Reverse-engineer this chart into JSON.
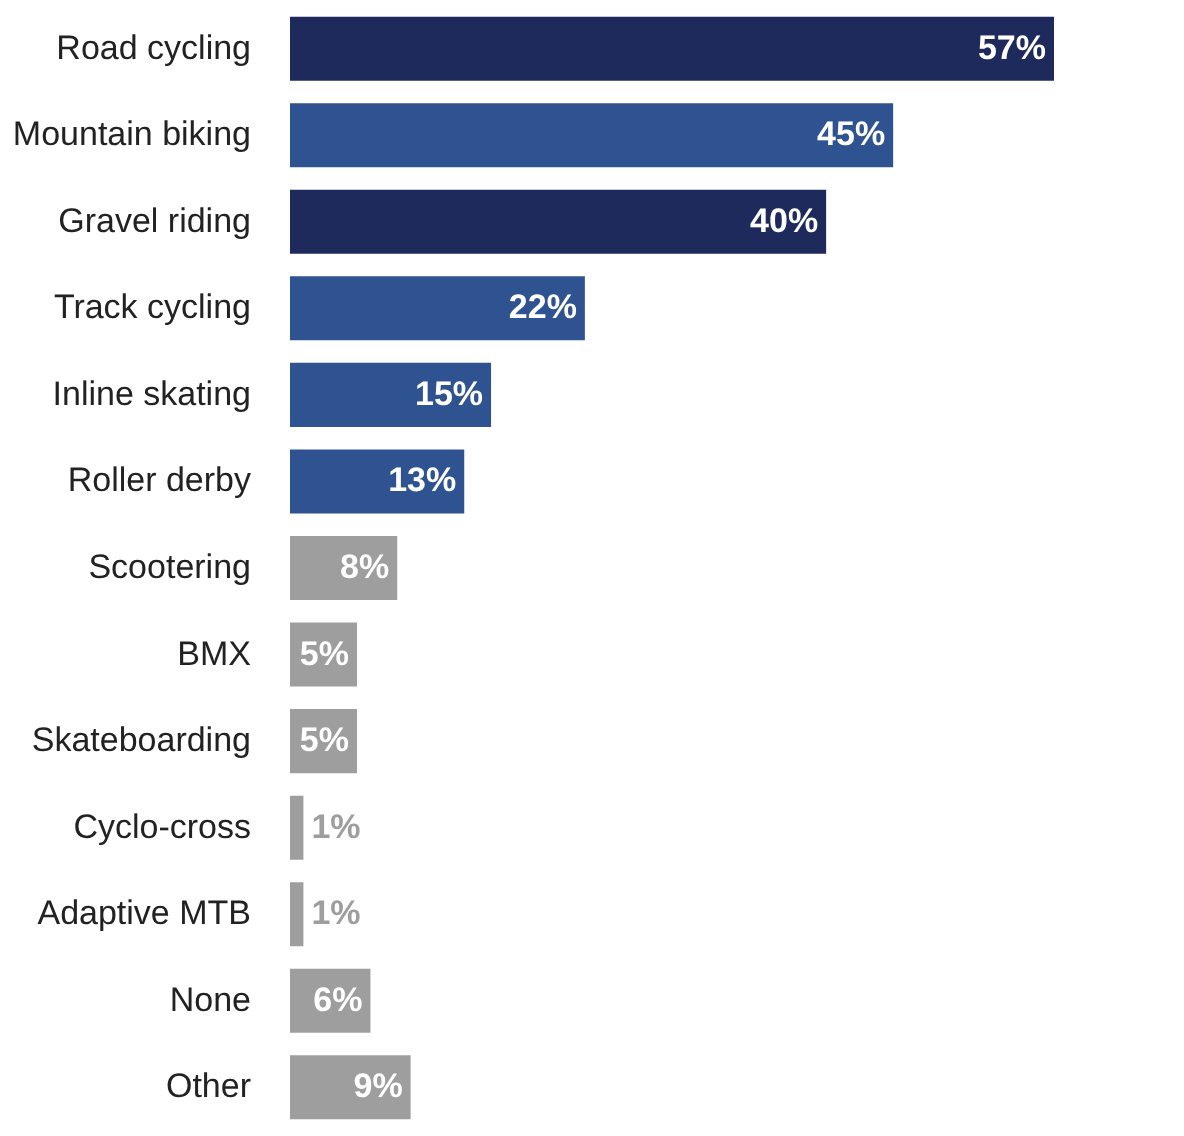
{
  "chart_data": {
    "type": "bar",
    "orientation": "horizontal",
    "categories": [
      "Road cycling",
      "Mountain biking",
      "Gravel riding",
      "Track cycling",
      "Inline skating",
      "Roller derby",
      "Scootering",
      "BMX",
      "Skateboarding",
      "Cyclo-cross",
      "Adaptive MTB",
      "None",
      "Other"
    ],
    "values": [
      57,
      45,
      40,
      22,
      15,
      13,
      8,
      5,
      5,
      1,
      1,
      6,
      9
    ],
    "colors": [
      "#1e2a5c",
      "#2e5390",
      "#1e2a5c",
      "#2e5390",
      "#2e5390",
      "#2e5390",
      "#9e9e9e",
      "#9e9e9e",
      "#9e9e9e",
      "#9e9e9e",
      "#9e9e9e",
      "#9e9e9e",
      "#9e9e9e"
    ],
    "value_labels": [
      "57%",
      "45%",
      "40%",
      "22%",
      "15%",
      "13%",
      "8%",
      "5%",
      "5%",
      "1%",
      "1%",
      "6%",
      "9%"
    ],
    "grid": false
  }
}
